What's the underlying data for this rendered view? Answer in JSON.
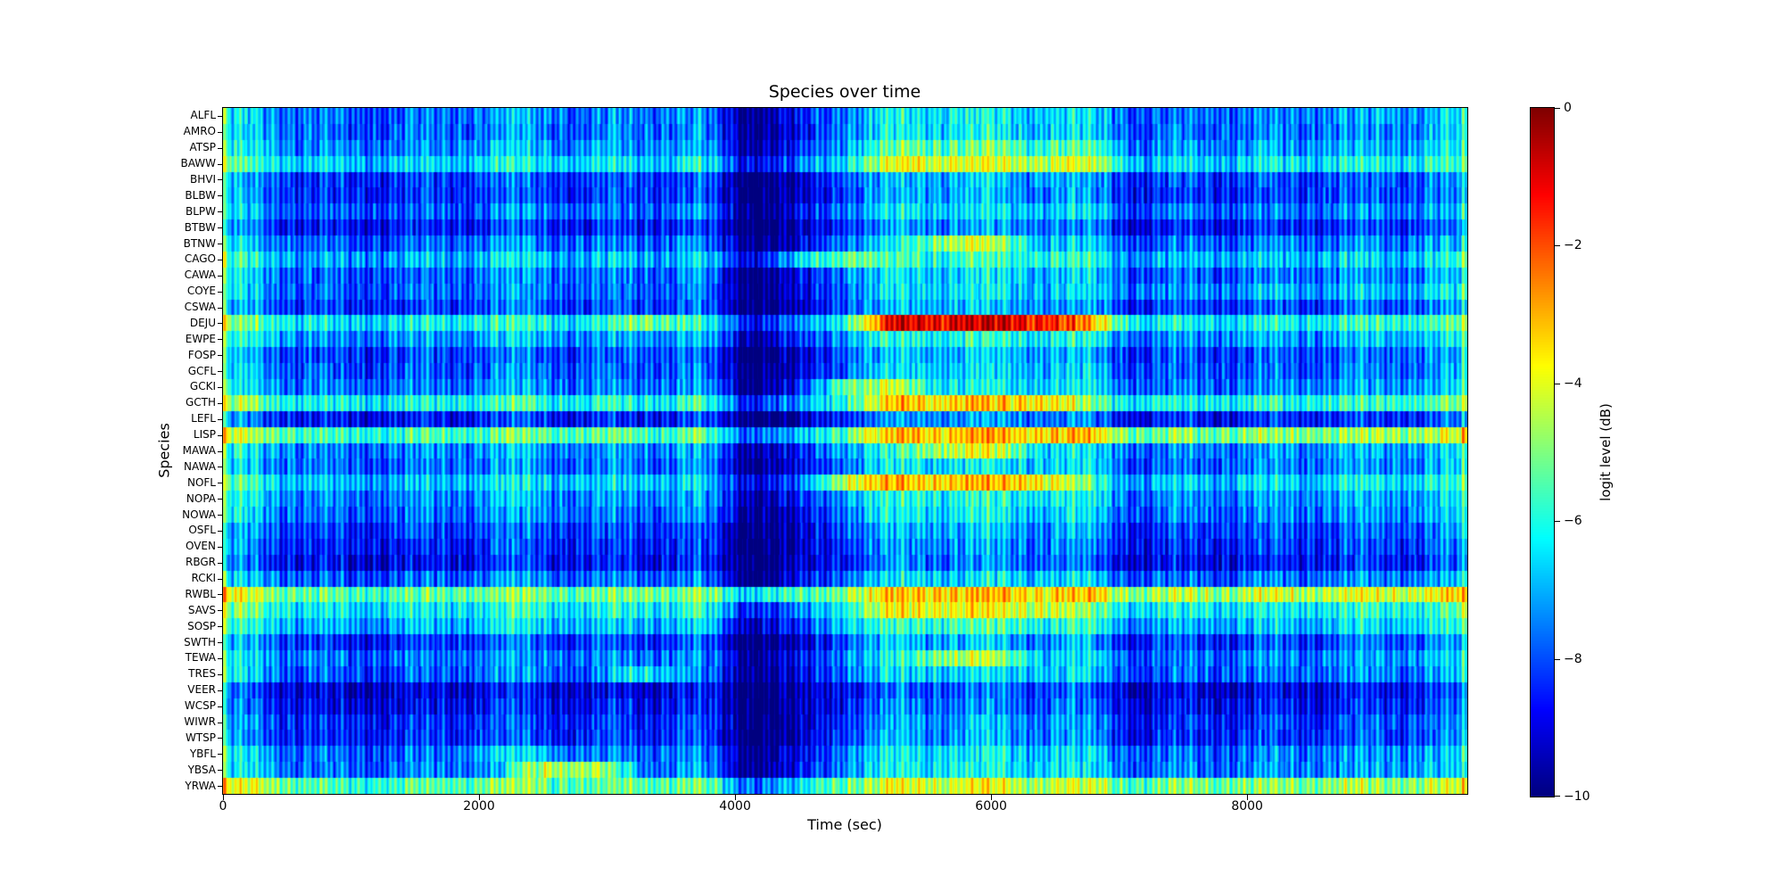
{
  "chart_data": {
    "type": "heatmap",
    "title": "Species over time",
    "xlabel": "Time (sec)",
    "ylabel": "Species",
    "colorbar_label": "logit level (dB)",
    "colormap": "jet",
    "vmin": -10,
    "vmax": 0,
    "x_min": 0,
    "x_max": 9720,
    "x_ticks": [
      0,
      2000,
      4000,
      6000,
      8000
    ],
    "x_tick_labels": [
      "0",
      "2000",
      "4000",
      "6000",
      "8000"
    ],
    "colorbar_ticks": [
      0,
      -2,
      -4,
      -6,
      -8,
      -10
    ],
    "colorbar_tick_labels": [
      "0",
      "−2",
      "−4",
      "−6",
      "−8",
      "−10"
    ],
    "species": [
      "ALFL",
      "AMRO",
      "ATSP",
      "BAWW",
      "BHVI",
      "BLBW",
      "BLPW",
      "BTBW",
      "BTNW",
      "CAGO",
      "CAWA",
      "COYE",
      "CSWA",
      "DEJU",
      "EWPE",
      "FOSP",
      "GCFL",
      "GCKI",
      "GCTH",
      "LEFL",
      "LISP",
      "MAWA",
      "NAWA",
      "NOFL",
      "NOPA",
      "NOWA",
      "OSFL",
      "OVEN",
      "RBGR",
      "RCKI",
      "RWBL",
      "SAVS",
      "SOSP",
      "SWTH",
      "TEWA",
      "TRES",
      "VEER",
      "WCSP",
      "WIWR",
      "WTSP",
      "YBFL",
      "YBSA",
      "YRWA"
    ],
    "time_bin_centers": [
      194,
      583,
      972,
      1361,
      1750,
      2139,
      2528,
      2917,
      3306,
      3694,
      4083,
      4472,
      4861,
      5250,
      5639,
      6028,
      6417,
      6806,
      7194,
      7583,
      7972,
      8361,
      8750,
      9139,
      9528
    ],
    "values_db": [
      [
        -6.6,
        -7.5,
        -8.0,
        -7.6,
        -7.8,
        -7.0,
        -7.4,
        -7.6,
        -7.5,
        -7.2,
        -9.6,
        -9.3,
        -7.0,
        -6.4,
        -6.2,
        -6.3,
        -6.5,
        -6.6,
        -8.0,
        -7.5,
        -7.6,
        -7.4,
        -7.3,
        -7.2,
        -6.9
      ],
      [
        -6.7,
        -7.6,
        -8.1,
        -7.7,
        -7.9,
        -7.1,
        -7.5,
        -7.7,
        -7.6,
        -7.3,
        -9.7,
        -9.4,
        -7.1,
        -6.5,
        -6.3,
        -6.4,
        -6.6,
        -6.7,
        -8.1,
        -7.6,
        -7.7,
        -7.5,
        -7.4,
        -7.3,
        -7.0
      ],
      [
        -6.4,
        -7.3,
        -7.8,
        -7.4,
        -7.6,
        -6.8,
        -7.2,
        -7.4,
        -7.3,
        -7.0,
        -9.4,
        -9.1,
        -6.8,
        -5.4,
        -5.2,
        -5.3,
        -5.5,
        -5.6,
        -7.8,
        -7.3,
        -7.4,
        -7.2,
        -7.1,
        -7.0,
        -6.7
      ],
      [
        -5.6,
        -6.5,
        -7.0,
        -6.6,
        -6.8,
        -6.0,
        -6.4,
        -6.6,
        -6.5,
        -6.2,
        -8.6,
        -8.3,
        -6.0,
        -4.2,
        -4.0,
        -4.1,
        -4.3,
        -4.4,
        -7.0,
        -6.5,
        -6.6,
        -6.4,
        -6.3,
        -6.2,
        -5.9
      ],
      [
        -7.2,
        -8.1,
        -8.6,
        -8.2,
        -8.4,
        -7.6,
        -8.0,
        -8.2,
        -8.1,
        -7.8,
        -10.0,
        -9.9,
        -7.6,
        -7.0,
        -6.8,
        -6.9,
        -7.1,
        -7.2,
        -8.6,
        -8.1,
        -8.2,
        -8.0,
        -7.9,
        -7.8,
        -7.5
      ],
      [
        -7.3,
        -8.2,
        -8.7,
        -8.3,
        -8.5,
        -7.7,
        -8.1,
        -8.3,
        -8.2,
        -7.9,
        -10.0,
        -10.0,
        -7.7,
        -7.1,
        -6.9,
        -7.0,
        -7.2,
        -7.3,
        -8.7,
        -8.2,
        -8.3,
        -8.1,
        -8.0,
        -7.9,
        -7.6
      ],
      [
        -6.8,
        -7.7,
        -8.2,
        -7.8,
        -8.0,
        -7.2,
        -7.6,
        -7.8,
        -7.7,
        -7.4,
        -9.8,
        -9.5,
        -7.2,
        -6.6,
        -6.4,
        -6.5,
        -6.7,
        -6.8,
        -8.2,
        -7.7,
        -7.8,
        -7.6,
        -7.5,
        -7.4,
        -7.1
      ],
      [
        -7.6,
        -8.5,
        -9.0,
        -8.6,
        -8.8,
        -8.0,
        -8.4,
        -8.6,
        -8.5,
        -8.2,
        -10.0,
        -10.0,
        -8.0,
        -7.4,
        -7.2,
        -7.3,
        -7.5,
        -7.6,
        -9.0,
        -8.5,
        -8.6,
        -8.4,
        -8.3,
        -8.2,
        -7.9
      ],
      [
        -6.8,
        -7.7,
        -8.2,
        -7.8,
        -8.0,
        -7.2,
        -7.6,
        -7.8,
        -7.7,
        -7.4,
        -9.8,
        -9.5,
        -7.2,
        -6.6,
        -4.4,
        -4.5,
        -6.7,
        -6.8,
        -8.2,
        -7.7,
        -7.8,
        -7.6,
        -7.5,
        -7.4,
        -7.1
      ],
      [
        -6.0,
        -6.9,
        -7.4,
        -7.0,
        -7.2,
        -6.4,
        -6.8,
        -7.0,
        -6.9,
        -6.6,
        -9.0,
        -7.2,
        -4.9,
        -5.8,
        -5.6,
        -5.7,
        -5.9,
        -6.0,
        -7.4,
        -6.9,
        -7.0,
        -6.8,
        -6.7,
        -6.6,
        -6.3
      ],
      [
        -6.8,
        -7.7,
        -8.2,
        -7.8,
        -8.0,
        -7.2,
        -7.6,
        -7.8,
        -7.7,
        -7.4,
        -9.8,
        -9.5,
        -7.2,
        -6.6,
        -6.4,
        -6.5,
        -6.7,
        -6.8,
        -8.2,
        -7.7,
        -7.8,
        -7.6,
        -7.5,
        -7.4,
        -7.1
      ],
      [
        -6.8,
        -7.7,
        -8.2,
        -7.8,
        -8.0,
        -7.2,
        -7.6,
        -7.8,
        -7.7,
        -7.4,
        -9.8,
        -9.5,
        -7.2,
        -6.6,
        -6.4,
        -6.5,
        -6.7,
        -6.8,
        -7.7,
        -7.2,
        -7.3,
        -7.1,
        -7.0,
        -6.9,
        -6.6
      ],
      [
        -7.2,
        -8.1,
        -8.6,
        -8.2,
        -8.4,
        -7.6,
        -8.0,
        -8.2,
        -8.1,
        -7.8,
        -10.0,
        -9.9,
        -7.6,
        -7.0,
        -6.8,
        -6.9,
        -7.1,
        -7.2,
        -8.6,
        -8.1,
        -8.2,
        -8.0,
        -7.9,
        -7.8,
        -7.5
      ],
      [
        -5.3,
        -6.2,
        -6.7,
        -6.3,
        -6.5,
        -5.7,
        -6.1,
        -6.3,
        -4.7,
        -5.9,
        -8.3,
        -8.0,
        -5.7,
        -1.1,
        -0.9,
        -1.0,
        -1.2,
        -3.3,
        -6.7,
        -6.2,
        -6.3,
        -6.1,
        -6.0,
        -5.9,
        -5.6
      ],
      [
        -6.3,
        -7.2,
        -7.7,
        -7.3,
        -7.5,
        -6.7,
        -7.1,
        -7.3,
        -7.2,
        -6.9,
        -9.3,
        -9.0,
        -6.7,
        -6.1,
        -5.9,
        -6.0,
        -6.2,
        -6.3,
        -7.7,
        -7.2,
        -7.3,
        -7.1,
        -7.0,
        -6.9,
        -6.6
      ],
      [
        -7.1,
        -8.0,
        -8.5,
        -8.1,
        -8.3,
        -7.5,
        -7.9,
        -8.1,
        -8.0,
        -7.7,
        -10.0,
        -9.8,
        -7.5,
        -6.9,
        -6.7,
        -6.8,
        -7.0,
        -7.1,
        -8.5,
        -8.0,
        -8.1,
        -7.9,
        -7.8,
        -7.7,
        -7.4
      ],
      [
        -6.9,
        -7.8,
        -8.3,
        -7.9,
        -8.1,
        -7.3,
        -7.7,
        -7.9,
        -7.8,
        -7.5,
        -9.9,
        -9.6,
        -7.3,
        -6.7,
        -6.5,
        -6.6,
        -6.8,
        -6.9,
        -8.3,
        -7.8,
        -7.9,
        -7.7,
        -7.6,
        -7.5,
        -7.2
      ],
      [
        -6.6,
        -7.5,
        -8.0,
        -7.6,
        -7.8,
        -7.0,
        -7.4,
        -7.6,
        -7.5,
        -7.2,
        -9.6,
        -9.3,
        -5.0,
        -4.4,
        -6.2,
        -6.3,
        -6.5,
        -6.6,
        -8.0,
        -7.5,
        -7.6,
        -7.4,
        -7.3,
        -7.2,
        -6.9
      ],
      [
        -5.1,
        -6.0,
        -6.5,
        -6.1,
        -6.3,
        -5.5,
        -5.9,
        -6.1,
        -6.0,
        -5.7,
        -8.1,
        -7.8,
        -5.5,
        -3.4,
        -3.2,
        -3.3,
        -3.5,
        -5.1,
        -6.5,
        -6.0,
        -6.1,
        -5.9,
        -5.8,
        -5.7,
        -5.4
      ],
      [
        -7.6,
        -8.5,
        -9.0,
        -8.6,
        -8.8,
        -8.0,
        -8.4,
        -8.6,
        -8.5,
        -8.2,
        -10.0,
        -10.0,
        -8.0,
        -7.4,
        -7.2,
        -7.3,
        -7.5,
        -7.6,
        -9.0,
        -8.5,
        -8.6,
        -8.4,
        -8.3,
        -8.2,
        -7.9
      ],
      [
        -4.6,
        -5.5,
        -6.0,
        -5.6,
        -5.8,
        -5.0,
        -5.4,
        -5.6,
        -5.5,
        -5.2,
        -7.6,
        -7.3,
        -5.0,
        -3.2,
        -3.0,
        -3.1,
        -3.3,
        -3.4,
        -5.5,
        -5.0,
        -5.1,
        -4.9,
        -4.8,
        -4.7,
        -4.4
      ],
      [
        -6.4,
        -7.3,
        -7.8,
        -7.4,
        -7.6,
        -6.8,
        -7.2,
        -7.4,
        -7.3,
        -7.0,
        -9.4,
        -9.1,
        -6.8,
        -6.2,
        -4.2,
        -4.3,
        -6.3,
        -6.4,
        -7.8,
        -7.3,
        -7.4,
        -7.2,
        -7.1,
        -7.0,
        -6.7
      ],
      [
        -6.7,
        -7.6,
        -8.1,
        -7.7,
        -7.9,
        -7.1,
        -7.5,
        -7.7,
        -7.6,
        -7.3,
        -9.7,
        -9.4,
        -7.1,
        -6.5,
        -6.3,
        -6.4,
        -6.6,
        -6.7,
        -8.1,
        -7.6,
        -7.7,
        -7.5,
        -7.4,
        -7.3,
        -7.0
      ],
      [
        -5.8,
        -6.7,
        -7.2,
        -6.8,
        -7.0,
        -6.2,
        -6.6,
        -6.8,
        -6.7,
        -6.4,
        -8.8,
        -8.5,
        -4.0,
        -3.4,
        -3.2,
        -3.3,
        -3.5,
        -5.8,
        -7.2,
        -6.7,
        -6.8,
        -6.6,
        -6.5,
        -6.4,
        -6.1
      ],
      [
        -6.4,
        -7.3,
        -7.8,
        -7.4,
        -7.6,
        -6.8,
        -7.2,
        -7.4,
        -7.3,
        -7.0,
        -9.4,
        -9.1,
        -6.8,
        -6.2,
        -6.0,
        -6.1,
        -6.3,
        -6.4,
        -7.8,
        -7.3,
        -7.4,
        -7.2,
        -7.1,
        -7.0,
        -6.7
      ],
      [
        -6.7,
        -7.6,
        -8.1,
        -7.7,
        -7.9,
        -7.1,
        -7.5,
        -7.7,
        -7.6,
        -7.3,
        -9.7,
        -9.4,
        -7.1,
        -6.5,
        -6.3,
        -6.4,
        -6.6,
        -6.7,
        -8.1,
        -7.6,
        -7.7,
        -7.5,
        -7.4,
        -7.3,
        -7.0
      ],
      [
        -7.2,
        -8.1,
        -8.6,
        -8.2,
        -8.4,
        -7.6,
        -8.0,
        -8.2,
        -8.1,
        -7.8,
        -10.0,
        -9.9,
        -7.6,
        -7.0,
        -6.8,
        -6.9,
        -7.1,
        -7.2,
        -8.6,
        -8.1,
        -8.2,
        -8.0,
        -7.9,
        -7.8,
        -7.5
      ],
      [
        -7.5,
        -8.4,
        -8.9,
        -8.5,
        -8.7,
        -7.9,
        -8.3,
        -8.5,
        -8.4,
        -8.1,
        -10.0,
        -10.0,
        -7.9,
        -7.3,
        -7.1,
        -7.2,
        -7.4,
        -7.5,
        -8.9,
        -8.4,
        -8.5,
        -8.3,
        -8.2,
        -8.1,
        -7.8
      ],
      [
        -7.8,
        -8.7,
        -9.2,
        -8.8,
        -9.0,
        -8.2,
        -8.6,
        -8.8,
        -8.7,
        -8.4,
        -10.0,
        -10.0,
        -8.2,
        -7.6,
        -7.4,
        -7.5,
        -7.7,
        -7.8,
        -9.2,
        -8.7,
        -8.8,
        -8.6,
        -8.5,
        -8.4,
        -8.1
      ],
      [
        -6.8,
        -7.7,
        -8.2,
        -7.8,
        -8.0,
        -7.2,
        -7.6,
        -7.8,
        -7.7,
        -7.4,
        -9.8,
        -9.5,
        -7.2,
        -6.6,
        -6.4,
        -6.5,
        -6.7,
        -6.8,
        -8.2,
        -7.7,
        -7.8,
        -7.6,
        -7.5,
        -7.4,
        -7.1
      ],
      [
        -4.3,
        -5.2,
        -5.7,
        -5.3,
        -5.5,
        -4.7,
        -5.1,
        -5.3,
        -5.2,
        -4.9,
        -6.3,
        -6.0,
        -4.7,
        -3.3,
        -3.1,
        -3.2,
        -3.4,
        -3.5,
        -4.9,
        -4.4,
        -4.5,
        -4.3,
        -4.2,
        -4.1,
        -3.8
      ],
      [
        -5.3,
        -6.2,
        -6.7,
        -6.3,
        -6.5,
        -5.7,
        -6.1,
        -6.3,
        -6.2,
        -5.9,
        -8.3,
        -8.0,
        -5.7,
        -3.9,
        -3.7,
        -3.8,
        -4.0,
        -5.3,
        -6.7,
        -6.2,
        -6.3,
        -6.1,
        -6.0,
        -5.9,
        -5.6
      ],
      [
        -6.0,
        -6.9,
        -7.4,
        -7.0,
        -7.2,
        -6.4,
        -6.8,
        -7.0,
        -6.9,
        -6.6,
        -9.0,
        -8.7,
        -6.4,
        -5.8,
        -5.6,
        -5.7,
        -5.9,
        -6.0,
        -7.4,
        -6.9,
        -7.0,
        -6.8,
        -6.7,
        -6.6,
        -6.3
      ],
      [
        -7.2,
        -8.1,
        -8.6,
        -8.2,
        -8.4,
        -7.6,
        -8.0,
        -8.2,
        -8.1,
        -7.8,
        -10.0,
        -9.9,
        -7.6,
        -7.0,
        -6.8,
        -6.9,
        -7.1,
        -7.2,
        -8.6,
        -8.1,
        -8.2,
        -8.0,
        -7.9,
        -7.8,
        -7.5
      ],
      [
        -6.6,
        -7.5,
        -8.0,
        -7.6,
        -7.8,
        -7.0,
        -7.4,
        -7.6,
        -7.5,
        -7.2,
        -9.6,
        -9.3,
        -7.0,
        -6.4,
        -4.6,
        -4.7,
        -6.5,
        -6.6,
        -8.0,
        -7.5,
        -7.6,
        -7.4,
        -7.3,
        -7.2,
        -6.9
      ],
      [
        -6.8,
        -7.7,
        -8.2,
        -7.8,
        -8.0,
        -7.2,
        -7.6,
        -7.8,
        -5.9,
        -7.4,
        -9.8,
        -9.5,
        -7.2,
        -6.6,
        -6.4,
        -6.5,
        -6.7,
        -6.8,
        -8.2,
        -7.7,
        -7.8,
        -7.6,
        -7.5,
        -7.4,
        -7.1
      ],
      [
        -8.1,
        -9.0,
        -9.5,
        -9.1,
        -9.3,
        -8.5,
        -8.9,
        -9.1,
        -9.0,
        -8.7,
        -10.0,
        -10.0,
        -8.5,
        -7.9,
        -7.7,
        -7.8,
        -8.0,
        -8.1,
        -9.5,
        -9.0,
        -9.1,
        -8.9,
        -8.8,
        -8.7,
        -8.4
      ],
      [
        -7.8,
        -8.7,
        -9.2,
        -8.8,
        -9.0,
        -8.2,
        -8.6,
        -8.8,
        -8.7,
        -8.4,
        -10.0,
        -10.0,
        -8.2,
        -7.6,
        -7.4,
        -7.5,
        -7.7,
        -7.8,
        -9.2,
        -8.7,
        -8.8,
        -8.6,
        -8.5,
        -8.4,
        -8.1
      ],
      [
        -7.4,
        -8.3,
        -8.8,
        -8.4,
        -8.6,
        -7.8,
        -8.2,
        -8.4,
        -8.3,
        -8.0,
        -10.0,
        -10.0,
        -7.8,
        -7.2,
        -7.0,
        -7.1,
        -7.3,
        -7.4,
        -8.8,
        -8.3,
        -8.4,
        -8.2,
        -8.1,
        -8.0,
        -7.7
      ],
      [
        -7.4,
        -8.3,
        -8.8,
        -8.4,
        -8.6,
        -7.8,
        -8.2,
        -8.4,
        -8.3,
        -8.0,
        -10.0,
        -10.0,
        -7.8,
        -7.2,
        -7.0,
        -7.1,
        -7.3,
        -7.4,
        -8.8,
        -8.3,
        -8.4,
        -8.2,
        -8.1,
        -8.0,
        -7.7
      ],
      [
        -6.7,
        -7.6,
        -8.1,
        -7.7,
        -7.9,
        -6.5,
        -6.9,
        -7.7,
        -7.6,
        -7.3,
        -9.7,
        -9.4,
        -7.1,
        -6.5,
        -6.3,
        -6.4,
        -6.6,
        -6.7,
        -8.1,
        -7.6,
        -7.7,
        -7.5,
        -7.4,
        -7.3,
        -7.0
      ],
      [
        -6.6,
        -7.5,
        -8.0,
        -7.6,
        -7.8,
        -7.0,
        -4.4,
        -4.6,
        -7.5,
        -7.2,
        -9.6,
        -9.3,
        -7.0,
        -6.4,
        -6.2,
        -6.3,
        -6.5,
        -6.6,
        -8.0,
        -7.5,
        -7.6,
        -7.4,
        -7.3,
        -7.2,
        -6.9
      ],
      [
        -4.0,
        -5.3,
        -5.8,
        -5.4,
        -5.6,
        -4.8,
        -5.2,
        -5.4,
        -5.3,
        -5.0,
        -7.4,
        -7.1,
        -4.8,
        -4.2,
        -4.0,
        -4.1,
        -4.3,
        -4.4,
        -5.5,
        -5.0,
        -5.1,
        -4.9,
        -4.8,
        -4.7,
        -4.4
      ]
    ]
  }
}
